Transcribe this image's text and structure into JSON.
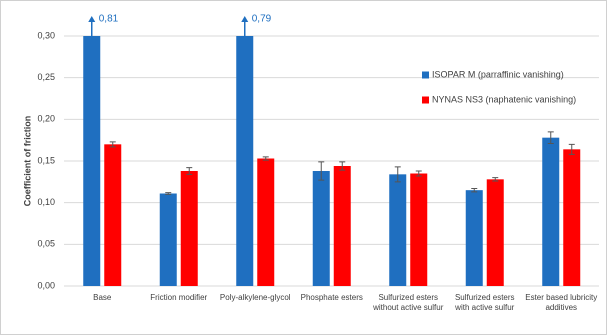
{
  "chart_data": {
    "type": "bar",
    "y_label": "Coefficient of friction",
    "categories": [
      "Base",
      "Friction modifier",
      "Poly-alkylene-glycol",
      "Phosphate esters",
      "Sulfurized esters without active sulfur",
      "Sulfurized esters with active sulfur",
      "Ester based lubricity additives"
    ],
    "series": [
      {
        "name": "ISOPAR M (parraffinic vanishing)",
        "color": "#1f6fc0",
        "values": [
          0.81,
          0.111,
          0.79,
          0.138,
          0.134,
          0.115,
          0.178
        ],
        "errors": [
          null,
          0.001,
          null,
          0.011,
          0.009,
          0.002,
          0.007
        ],
        "value_labels": [
          "0,81",
          null,
          "0,79",
          null,
          null,
          null,
          null
        ]
      },
      {
        "name": "NYNAS NS3 (naphatenic vanishing)",
        "color": "#ff0000",
        "values": [
          0.17,
          0.138,
          0.153,
          0.144,
          0.135,
          0.128,
          0.164
        ],
        "errors": [
          0.003,
          0.004,
          0.002,
          0.005,
          0.003,
          0.002,
          0.006
        ]
      }
    ],
    "ylim": [
      0,
      0.3
    ],
    "yticks": [
      {
        "value": 0,
        "label": "0,00"
      },
      {
        "value": 0.05,
        "label": "0,05"
      },
      {
        "value": 0.1,
        "label": "0,10"
      },
      {
        "value": 0.15,
        "label": "0,15"
      },
      {
        "value": 0.2,
        "label": "0,20"
      },
      {
        "value": 0.25,
        "label": "0,25"
      },
      {
        "value": 0.3,
        "label": "0,30"
      }
    ],
    "grid": true,
    "legend": "right"
  }
}
